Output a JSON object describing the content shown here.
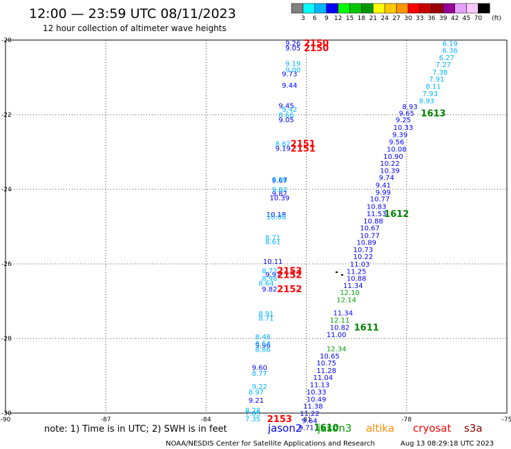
{
  "header": {
    "title": "12:00 — 23:59 UTC 08/11/2023",
    "subtitle": "12 hour collection of altimeter wave heights"
  },
  "colorbar": {
    "labels": [
      "3",
      "6",
      "9",
      "12",
      "15",
      "18",
      "21",
      "24",
      "27",
      "30",
      "33",
      "36",
      "39",
      "42",
      "45",
      "70"
    ],
    "unit": "(ft)",
    "colors": [
      "#808080",
      "#00ffff",
      "#00b4ff",
      "#0000ff",
      "#00ff00",
      "#00c800",
      "#009600",
      "#ffff00",
      "#ffc800",
      "#ff9600",
      "#ff0000",
      "#c80000",
      "#960000",
      "#960096",
      "#e6a0ff",
      "#ffc8ff",
      "#000000"
    ]
  },
  "footer": {
    "note": "note:  1) Time is in UTC;  2) SWH is in feet",
    "satellites": [
      {
        "name": "jason2",
        "color": "#0000ff"
      },
      {
        "name": "jason3",
        "color": "#00a000"
      },
      {
        "name": "altika",
        "color": "#ff8c00"
      },
      {
        "name": "cryosat",
        "color": "#ff0000"
      },
      {
        "name": "s3a",
        "color": "#8b0000"
      }
    ],
    "credit_left": "NOAA/NESDIS Center for Satellite Applications and Research",
    "credit_right": "Aug 13 08:29:18 UTC 2023"
  },
  "chart_data": {
    "type": "scatter",
    "title": "12:00 — 23:59 UTC 08/11/2023",
    "subtitle": "12 hour collection of altimeter wave heights",
    "xlim": [
      -90,
      -75
    ],
    "ylim": [
      -30,
      -20
    ],
    "x_ticks": [
      -90,
      -87,
      -84,
      -81,
      -78,
      -75
    ],
    "y_ticks": [
      -20,
      -22,
      -24,
      -26,
      -28,
      -30
    ],
    "grid": true,
    "series": [
      {
        "name": "jason2",
        "color": "#0000ff",
        "points": [
          {
            "x": -81.4,
            "y": -20.07,
            "v": "9.26"
          },
          {
            "x": -81.4,
            "y": -20.2,
            "v": "9.05"
          },
          {
            "x": -81.5,
            "y": -20.9,
            "v": "9.73"
          },
          {
            "x": -81.5,
            "y": -21.2,
            "v": "9.44"
          },
          {
            "x": -81.6,
            "y": -21.75,
            "v": "9.45"
          },
          {
            "x": -81.6,
            "y": -22.13,
            "v": "9.05"
          },
          {
            "x": -81.7,
            "y": -22.9,
            "v": "9.19"
          },
          {
            "x": -81.8,
            "y": -23.75,
            "v": "9.67"
          },
          {
            "x": -81.8,
            "y": -24.1,
            "v": "9.87"
          },
          {
            "x": -81.8,
            "y": -24.22,
            "v": "10.39"
          },
          {
            "x": -81.9,
            "y": -24.67,
            "v": "10.18"
          },
          {
            "x": -82.0,
            "y": -25.93,
            "v": "10.11"
          },
          {
            "x": -82.0,
            "y": -26.28,
            "v": "9.97"
          },
          {
            "x": -82.1,
            "y": -26.67,
            "v": "9.82"
          },
          {
            "x": -82.3,
            "y": -28.17,
            "v": "9.96"
          },
          {
            "x": -82.4,
            "y": -28.77,
            "v": "9.60"
          },
          {
            "x": -82.5,
            "y": -29.65,
            "v": "9.21"
          },
          {
            "x": -77.9,
            "y": -21.78,
            "v": "8.93"
          },
          {
            "x": -78.0,
            "y": -21.95,
            "v": "9.65"
          },
          {
            "x": -78.1,
            "y": -22.13,
            "v": "9.25"
          },
          {
            "x": -78.1,
            "y": -22.33,
            "v": "10.33"
          },
          {
            "x": -78.2,
            "y": -22.53,
            "v": "9.39"
          },
          {
            "x": -78.3,
            "y": -22.72,
            "v": "9.56"
          },
          {
            "x": -78.3,
            "y": -22.92,
            "v": "10.08"
          },
          {
            "x": -78.4,
            "y": -23.11,
            "v": "10.90"
          },
          {
            "x": -78.5,
            "y": -23.3,
            "v": "10.22"
          },
          {
            "x": -78.5,
            "y": -23.49,
            "v": "10.39"
          },
          {
            "x": -78.6,
            "y": -23.68,
            "v": "9.74"
          },
          {
            "x": -78.7,
            "y": -23.88,
            "v": "9.41"
          },
          {
            "x": -78.7,
            "y": -24.07,
            "v": "9.99"
          },
          {
            "x": -78.8,
            "y": -24.25,
            "v": "10.77"
          },
          {
            "x": -78.9,
            "y": -24.45,
            "v": "10.83"
          },
          {
            "x": -78.9,
            "y": -24.65,
            "v": "11.53"
          },
          {
            "x": -79.0,
            "y": -24.84,
            "v": "10.88"
          },
          {
            "x": -79.1,
            "y": -25.03,
            "v": "10.67"
          },
          {
            "x": -79.1,
            "y": -25.23,
            "v": "10.77"
          },
          {
            "x": -79.2,
            "y": -25.42,
            "v": "10.89"
          },
          {
            "x": -79.3,
            "y": -25.61,
            "v": "10.73"
          },
          {
            "x": -79.3,
            "y": -25.8,
            "v": "10.22"
          },
          {
            "x": -79.4,
            "y": -26.0,
            "v": "11.03"
          },
          {
            "x": -79.5,
            "y": -26.19,
            "v": "11.25"
          },
          {
            "x": -79.5,
            "y": -26.38,
            "v": "10.88"
          },
          {
            "x": -79.6,
            "y": -26.57,
            "v": "11.34"
          },
          {
            "x": -79.9,
            "y": -27.31,
            "v": "11.34"
          },
          {
            "x": -80.0,
            "y": -27.69,
            "v": "10.82"
          },
          {
            "x": -80.1,
            "y": -27.89,
            "v": "11.00"
          },
          {
            "x": -80.3,
            "y": -28.46,
            "v": "10.65"
          },
          {
            "x": -80.4,
            "y": -28.65,
            "v": "10.75"
          },
          {
            "x": -80.4,
            "y": -28.85,
            "v": "11.28"
          },
          {
            "x": -80.5,
            "y": -29.04,
            "v": "11.04"
          },
          {
            "x": -80.6,
            "y": -29.23,
            "v": "11.13"
          },
          {
            "x": -80.7,
            "y": -29.43,
            "v": "10.33"
          },
          {
            "x": -80.7,
            "y": -29.62,
            "v": "10.49"
          },
          {
            "x": -80.8,
            "y": -29.81,
            "v": "11.38"
          },
          {
            "x": -80.9,
            "y": -30.0,
            "v": "11.22"
          },
          {
            "x": -80.9,
            "y": -30.19,
            "v": "9.64"
          },
          {
            "x": -81.0,
            "y": -30.38,
            "v": "9.71"
          }
        ]
      },
      {
        "name": "jason3",
        "color": "#00a000",
        "points": [
          {
            "x": -79.7,
            "y": -26.76,
            "v": "12.10"
          },
          {
            "x": -79.8,
            "y": -26.95,
            "v": "12.14"
          },
          {
            "x": -80.0,
            "y": -27.5,
            "v": "12.11"
          },
          {
            "x": -80.1,
            "y": -28.27,
            "v": "12.34"
          }
        ]
      },
      {
        "name": "cyan",
        "color": "#00b4ff",
        "points": [
          {
            "x": -76.7,
            "y": -20.08,
            "v": "6.19"
          },
          {
            "x": -76.7,
            "y": -20.27,
            "v": "6.36"
          },
          {
            "x": -76.8,
            "y": -20.46,
            "v": "6.27"
          },
          {
            "x": -76.9,
            "y": -20.65,
            "v": "7.27"
          },
          {
            "x": -77.0,
            "y": -20.85,
            "v": "7.38"
          },
          {
            "x": -77.1,
            "y": -21.04,
            "v": "7.91"
          },
          {
            "x": -77.2,
            "y": -21.23,
            "v": "8.11"
          },
          {
            "x": -77.3,
            "y": -21.43,
            "v": "7.93"
          },
          {
            "x": -77.4,
            "y": -21.62,
            "v": "8.93"
          },
          {
            "x": -81.4,
            "y": -20.62,
            "v": "9.19"
          },
          {
            "x": -81.4,
            "y": -20.79,
            "v": "9.00"
          },
          {
            "x": -81.5,
            "y": -21.85,
            "v": "9.42"
          },
          {
            "x": -81.6,
            "y": -22.0,
            "v": "8.66"
          },
          {
            "x": -81.7,
            "y": -22.77,
            "v": "8.62"
          },
          {
            "x": -81.8,
            "y": -23.73,
            "v": "8.96"
          },
          {
            "x": -81.8,
            "y": -24.0,
            "v": "9.82"
          },
          {
            "x": -81.9,
            "y": -24.73,
            "v": "10.08"
          },
          {
            "x": -82.0,
            "y": -25.29,
            "v": "8.71"
          },
          {
            "x": -82.0,
            "y": -25.4,
            "v": "8.61"
          },
          {
            "x": -82.1,
            "y": -26.18,
            "v": "8.72"
          },
          {
            "x": -82.1,
            "y": -26.38,
            "v": "8.98"
          },
          {
            "x": -82.2,
            "y": -26.51,
            "v": "8.64"
          },
          {
            "x": -82.2,
            "y": -27.32,
            "v": "8.91"
          },
          {
            "x": -82.2,
            "y": -27.44,
            "v": "8.71"
          },
          {
            "x": -82.3,
            "y": -27.94,
            "v": "8.48"
          },
          {
            "x": -82.3,
            "y": -28.13,
            "v": "8.54"
          },
          {
            "x": -82.3,
            "y": -28.29,
            "v": "8.86"
          },
          {
            "x": -82.4,
            "y": -28.93,
            "v": "8.77"
          },
          {
            "x": -82.4,
            "y": -29.28,
            "v": "9.22"
          },
          {
            "x": -82.5,
            "y": -29.43,
            "v": "8.97"
          },
          {
            "x": -82.6,
            "y": -29.92,
            "v": "8.28"
          },
          {
            "x": -82.6,
            "y": -30.0,
            "v": "7.85"
          },
          {
            "x": -82.6,
            "y": -30.15,
            "v": "7.35"
          }
        ]
      }
    ],
    "pass_labels": [
      {
        "text": "2150",
        "color": "#ff0000",
        "x": -80.7,
        "y": -20.07
      },
      {
        "text": "2150",
        "color": "#ff0000",
        "x": -80.7,
        "y": -20.2
      },
      {
        "text": "1613",
        "color": "#008000",
        "x": -77.2,
        "y": -21.95
      },
      {
        "text": "2151",
        "color": "#ff0000",
        "x": -81.1,
        "y": -22.77
      },
      {
        "text": "2151",
        "color": "#ff0000",
        "x": -81.1,
        "y": -22.9
      },
      {
        "text": "1612",
        "color": "#008000",
        "x": -78.3,
        "y": -24.65
      },
      {
        "text": "2153",
        "color": "#ff0000",
        "x": -81.5,
        "y": -26.18
      },
      {
        "text": "2152",
        "color": "#ff0000",
        "x": -81.5,
        "y": -26.29
      },
      {
        "text": "2152",
        "color": "#ff0000",
        "x": -81.5,
        "y": -26.67
      },
      {
        "text": "1611",
        "color": "#008000",
        "x": -79.2,
        "y": -27.69
      },
      {
        "text": "2153",
        "color": "#ff0000",
        "x": -81.8,
        "y": -30.15
      },
      {
        "text": "1610",
        "color": "#008000",
        "x": -80.4,
        "y": -30.38
      }
    ]
  }
}
